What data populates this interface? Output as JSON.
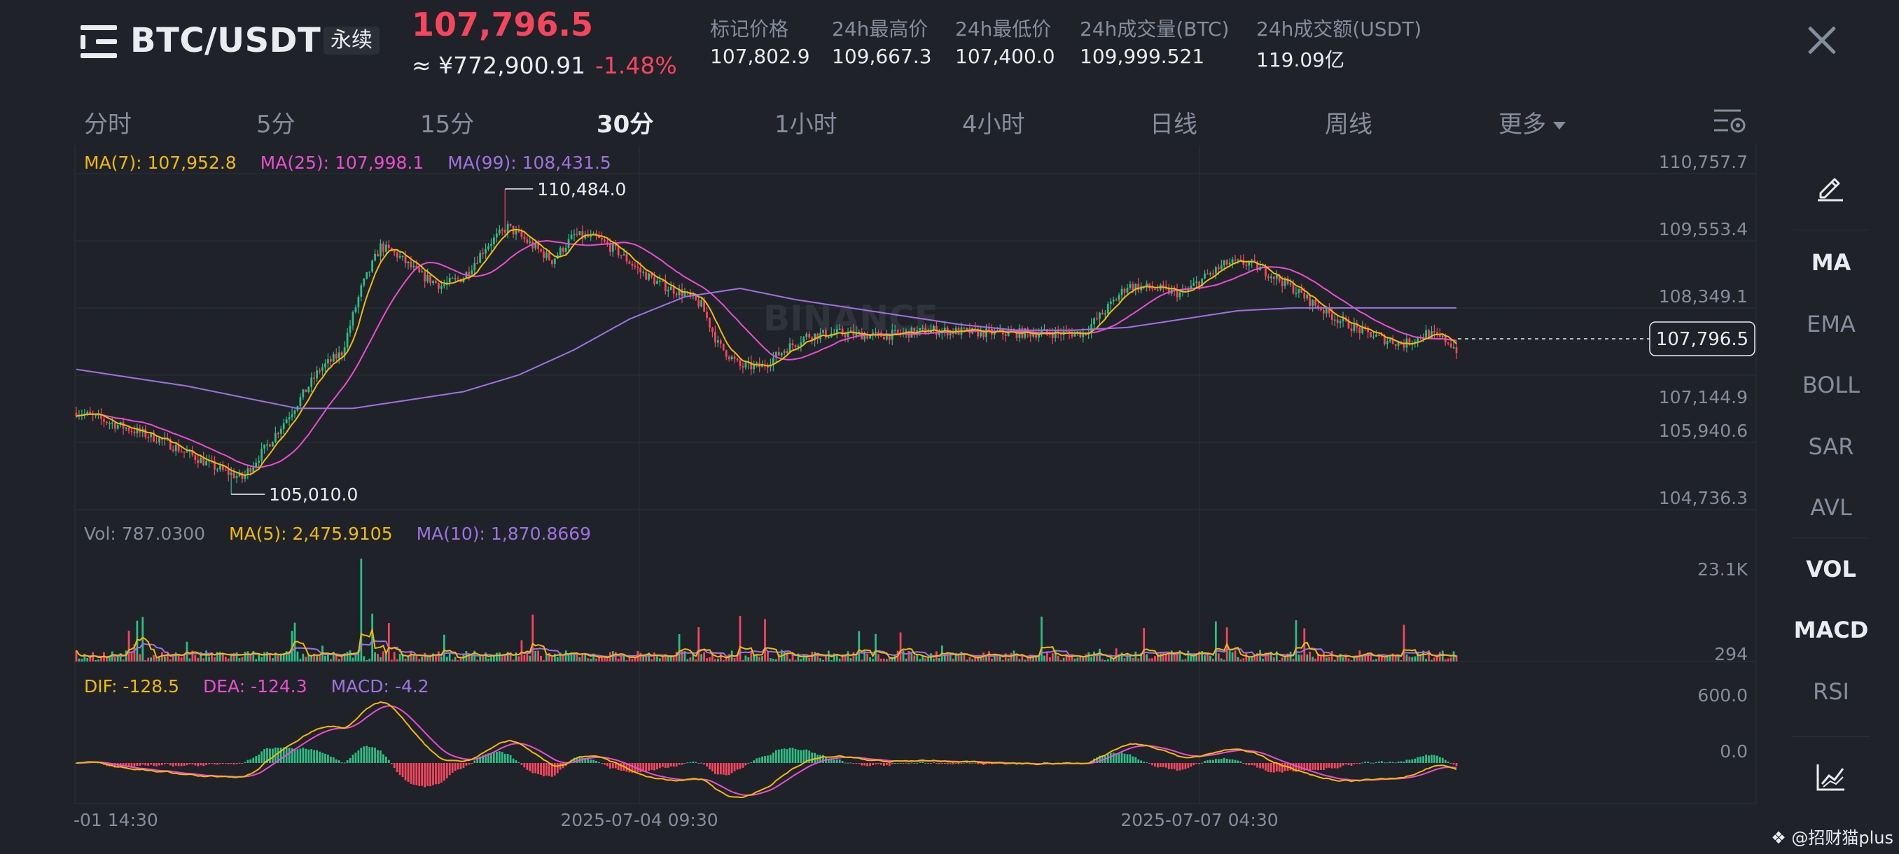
{
  "header": {
    "symbol": "BTC/USDT",
    "contract_tag": "永续",
    "last_price": "107,796.5",
    "cny_price": "≈ ¥772,900.91",
    "change_pct": "-1.48%",
    "stats": [
      {
        "label": "标记价格",
        "value": "107,802.9"
      },
      {
        "label": "24h最高价",
        "value": "109,667.3"
      },
      {
        "label": "24h最低价",
        "value": "107,400.0"
      },
      {
        "label": "24h成交量(BTC)",
        "value": "109,999.521"
      },
      {
        "label": "24h成交额(USDT)",
        "value": "119.09亿"
      }
    ]
  },
  "intervals": {
    "tabs": [
      "分时",
      "5分",
      "15分",
      "30分",
      "1小时",
      "4小时",
      "日线",
      "周线",
      "更多"
    ],
    "active": "30分"
  },
  "indicators": {
    "main": [
      "MA",
      "EMA",
      "BOLL",
      "SAR",
      "AVL"
    ],
    "sub": [
      "VOL",
      "MACD",
      "RSI"
    ],
    "active": [
      "MA",
      "VOL",
      "MACD"
    ]
  },
  "watermark": "BINANCE",
  "credit": "@招财猫plus",
  "colors": {
    "up": "#2ebd85",
    "down": "#f6465d",
    "ma7": "#f0b90b",
    "ma25": "#e84fd0",
    "ma99": "#9d73e0",
    "background": "#1f2229",
    "grid": "#2b3139"
  },
  "chart_data": [
    {
      "type": "candlestick",
      "legend": [
        "MA(7): 107,952.8",
        "MA(25): 107,998.1",
        "MA(99): 108,431.5"
      ],
      "y_ticks": [
        "110,757.7",
        "109,553.4",
        "108,349.1",
        "107,144.9",
        "105,940.6",
        "104,736.3"
      ],
      "ylim": [
        104736.3,
        110757.7
      ],
      "current_price_label": "107,796.5",
      "current_price": 107796.5,
      "high_annotation": "110,484.0",
      "high_value": 110484.0,
      "low_annotation": "105,010.0",
      "low_value": 105010.0,
      "x_ticks": [
        "-01 14:30",
        "2025-07-04 09:30",
        "2025-07-07 04:30"
      ],
      "close_keypoints": [
        [
          0,
          106500
        ],
        [
          15,
          106250
        ],
        [
          30,
          106000
        ],
        [
          42,
          105700
        ],
        [
          52,
          105450
        ],
        [
          60,
          105300
        ],
        [
          70,
          105950
        ],
        [
          80,
          106650
        ],
        [
          88,
          107250
        ],
        [
          96,
          107550
        ],
        [
          103,
          108700
        ],
        [
          110,
          109450
        ],
        [
          116,
          109300
        ],
        [
          124,
          108950
        ],
        [
          132,
          108750
        ],
        [
          140,
          108900
        ],
        [
          148,
          109450
        ],
        [
          156,
          109800
        ],
        [
          164,
          109500
        ],
        [
          172,
          109200
        ],
        [
          180,
          109650
        ],
        [
          188,
          109600
        ],
        [
          196,
          109350
        ],
        [
          204,
          109000
        ],
        [
          212,
          108750
        ],
        [
          220,
          108600
        ],
        [
          226,
          108400
        ],
        [
          232,
          107700
        ],
        [
          240,
          107300
        ],
        [
          248,
          107300
        ],
        [
          256,
          107600
        ],
        [
          264,
          107850
        ],
        [
          276,
          107900
        ],
        [
          290,
          107850
        ],
        [
          310,
          107950
        ],
        [
          330,
          107900
        ],
        [
          350,
          107900
        ],
        [
          364,
          107900
        ],
        [
          372,
          108300
        ],
        [
          380,
          108750
        ],
        [
          390,
          108700
        ],
        [
          400,
          108600
        ],
        [
          408,
          108900
        ],
        [
          416,
          109150
        ],
        [
          424,
          109150
        ],
        [
          432,
          108950
        ],
        [
          440,
          108700
        ],
        [
          448,
          108400
        ],
        [
          456,
          108150
        ],
        [
          464,
          107950
        ],
        [
          472,
          107800
        ],
        [
          480,
          107700
        ],
        [
          488,
          107900
        ],
        [
          496,
          107750
        ],
        [
          500,
          107550
        ]
      ],
      "ma99_keypoints": [
        [
          0,
          107250
        ],
        [
          40,
          106950
        ],
        [
          60,
          106750
        ],
        [
          80,
          106550
        ],
        [
          100,
          106550
        ],
        [
          120,
          106700
        ],
        [
          140,
          106850
        ],
        [
          160,
          107150
        ],
        [
          180,
          107600
        ],
        [
          200,
          108150
        ],
        [
          220,
          108550
        ],
        [
          240,
          108700
        ],
        [
          260,
          108500
        ],
        [
          280,
          108350
        ],
        [
          300,
          108200
        ],
        [
          320,
          108050
        ],
        [
          340,
          107950
        ],
        [
          360,
          107950
        ],
        [
          380,
          108000
        ],
        [
          400,
          108150
        ],
        [
          420,
          108300
        ],
        [
          440,
          108350
        ],
        [
          460,
          108350
        ],
        [
          480,
          108350
        ],
        [
          500,
          108350
        ]
      ]
    },
    {
      "type": "bar",
      "legend": [
        "Vol: 787.0300",
        "MA(5): 2,475.9105",
        "MA(10): 1,870.8669"
      ],
      "y_ticks": [
        "23.1K",
        "294"
      ],
      "ylim": [
        0,
        23100
      ]
    },
    {
      "type": "macd",
      "legend": [
        "DIF: -128.5",
        "DEA: -124.3",
        "MACD: -4.2"
      ],
      "y_ticks": [
        "600.0",
        "0.0"
      ]
    }
  ]
}
